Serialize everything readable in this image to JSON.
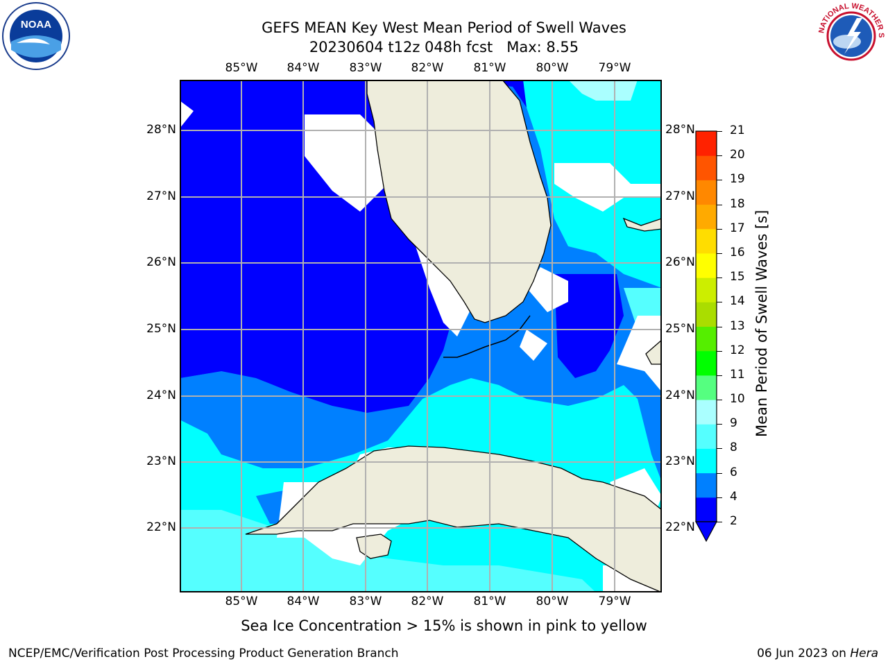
{
  "header": {
    "title_line1": "GEFS MEAN Key West Mean Period of Swell Waves",
    "title_line2": "20230604 t12z 048h fcst   Max: 8.55"
  },
  "logos": {
    "left": "NOAA",
    "right": "NATIONAL WEATHER SERVICE"
  },
  "map": {
    "lon_labels": [
      "85°W",
      "84°W",
      "83°W",
      "82°W",
      "81°W",
      "80°W",
      "79°W"
    ],
    "lat_labels": [
      "28°N",
      "27°N",
      "26°N",
      "25°N",
      "24°N",
      "23°N",
      "22°N"
    ],
    "colors": {
      "land": "#eeeddc",
      "deep_blue": "#0000ff",
      "mid_blue": "#0080ff",
      "cyan": "#00ffff",
      "light_cyan": "#55ffff",
      "pale_cyan": "#aaffff",
      "grid": "#b0b0b0"
    }
  },
  "colorbar": {
    "title": "Mean Period of Swell Waves [s]",
    "ticks": [
      "2",
      "4",
      "6",
      "8",
      "9",
      "10",
      "11",
      "12",
      "13",
      "14",
      "15",
      "16",
      "17",
      "18",
      "19",
      "20",
      "21"
    ],
    "colors": [
      "#0000ff",
      "#0080ff",
      "#00ffff",
      "#55ffff",
      "#aaffff",
      "#55ff80",
      "#00ff00",
      "#55ee00",
      "#aadd00",
      "#ccee00",
      "#ffff00",
      "#ffdd00",
      "#ffaa00",
      "#ff8800",
      "#ff5500",
      "#ff2200",
      "#ff0000"
    ]
  },
  "note": "Sea Ice Concentration > 15% is shown in pink to yellow",
  "footer": {
    "left": "NCEP/EMC/Verification Post Processing Product Generation Branch",
    "right_date": "06 Jun 2023 on ",
    "right_host": "Hera"
  }
}
